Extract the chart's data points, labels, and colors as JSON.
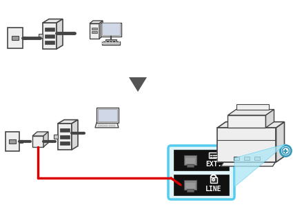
{
  "bg_color": "#ffffff",
  "arrow_color": "#555555",
  "red_wire_color": "#dd0000",
  "blue_highlight_color": "#55ccee",
  "black_box_color": "#111111",
  "gray_color": "#888888",
  "dark_gray": "#444444",
  "mid_gray": "#999999",
  "light_gray": "#cccccc",
  "very_light_gray": "#eeeeee",
  "ext_label": "EXT.",
  "line_label": "LINE",
  "fig_width": 4.25,
  "fig_height": 3.0,
  "dpi": 100
}
